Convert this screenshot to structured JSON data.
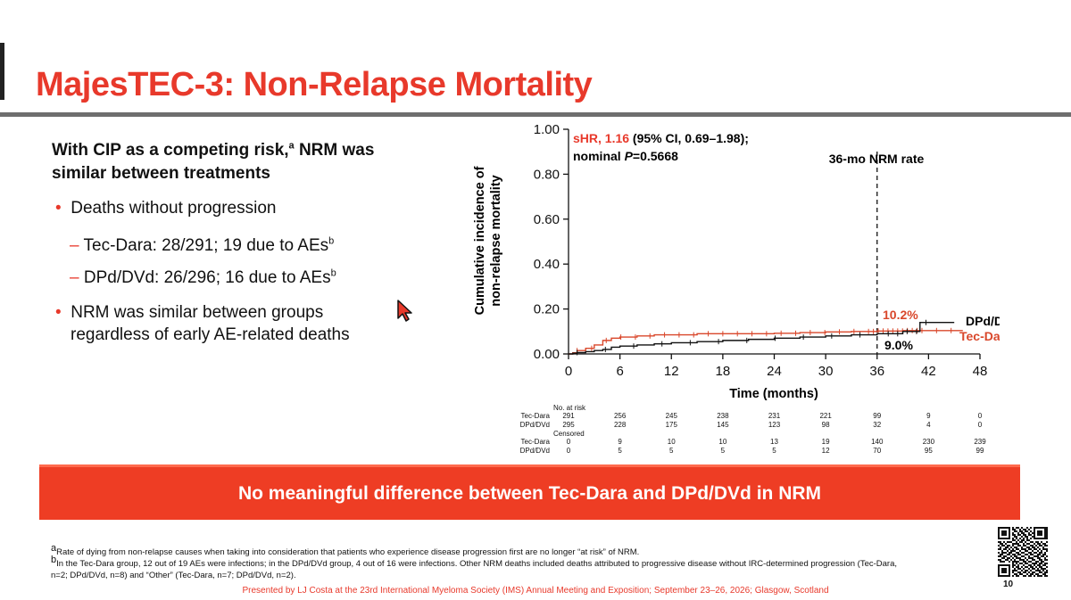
{
  "slide": {
    "title": "MajesTEC-3: Non-Relapse Mortality",
    "lead": "With CIP as a competing risk,",
    "lead_sup": "a",
    "lead_rest": " NRM was similar between treatments",
    "bullets": {
      "b1": "Deaths without progression",
      "b1a_label": "Tec-Dara: 28/291; 19 due to AEs",
      "b1a_sup": "b",
      "b1b_label": "DPd/DVd: 26/296; 16 due to AEs",
      "b1b_sup": "b",
      "b2_line1": "NRM was similar between groups",
      "b2_line2": "regardless of early AE-related deaths"
    },
    "banner": "No meaningful difference between Tec-Dara and DPd/DVd in NRM",
    "footnote_a_sup": "a",
    "footnote_a": "Rate of dying from non-relapse causes when taking into consideration that patients who experience disease progression first are no longer “at risk” of NRM.",
    "footnote_b_sup": "b",
    "footnote_b_line1": "In the Tec-Dara group, 12 out of 19 AEs were infections; in the DPd/DVd group, 4 out of 16 were infections. Other NRM deaths included deaths attributed to progressive disease without IRC-determined progression (Tec-Dara,",
    "footnote_b_line2": "n=2; DPd/DVd, n=8) and “Other” (Tec-Dara, n=7; DPd/DVd, n=2).",
    "presented_by": "Presented by LJ Costa at the 23rd International Myeloma Society (IMS) Annual Meeting and Exposition; September 23–26, 2026; Glasgow, Scotland",
    "page_number": "10"
  },
  "colors": {
    "accent": "#e8392b",
    "banner": "#ee3d24",
    "tec_dara": "#d9472b",
    "dpd_dvd": "#111111"
  },
  "icons": {
    "cursor": "cursor-arrow-icon",
    "qr": "qr-code-icon"
  },
  "chart_data": {
    "type": "line",
    "annotation_shr_red": "sHR, 1.16",
    "annotation_shr_rest": " (95% CI, 0.69–1.98);",
    "annotation_p_prefix": "nominal ",
    "annotation_p_italic": "P",
    "annotation_p_value": "=0.5668",
    "ref_line_label": "36-mo NRM rate",
    "ref_line_x": 36,
    "label_tec_rate": "10.2%",
    "label_dpd_rate": "9.0%",
    "xlabel": "Time (months)",
    "ylabel_line1": "Cumulative incidence of",
    "ylabel_line2": "non-relapse mortality",
    "xlim": [
      0,
      48
    ],
    "ylim": [
      0,
      1
    ],
    "x_ticks": [
      "0",
      "6",
      "12",
      "18",
      "24",
      "30",
      "36",
      "42",
      "48"
    ],
    "y_ticks": [
      "0.00",
      "0.20",
      "0.40",
      "0.60",
      "0.80",
      "1.00"
    ],
    "series": [
      {
        "name": "Tec-Dara",
        "points": [
          [
            0,
            0
          ],
          [
            0.5,
            0.005
          ],
          [
            1,
            0.015
          ],
          [
            2,
            0.025
          ],
          [
            3,
            0.04
          ],
          [
            4,
            0.06
          ],
          [
            5,
            0.07
          ],
          [
            6,
            0.075
          ],
          [
            8,
            0.08
          ],
          [
            10,
            0.085
          ],
          [
            12,
            0.085
          ],
          [
            15,
            0.09
          ],
          [
            18,
            0.09
          ],
          [
            21,
            0.09
          ],
          [
            24,
            0.092
          ],
          [
            27,
            0.095
          ],
          [
            30,
            0.098
          ],
          [
            33,
            0.1
          ],
          [
            36,
            0.102
          ],
          [
            39,
            0.104
          ],
          [
            42,
            0.104
          ],
          [
            46,
            0.104
          ]
        ]
      },
      {
        "name": "DPd/DVd",
        "points": [
          [
            0,
            0
          ],
          [
            0.5,
            0.003
          ],
          [
            1,
            0.006
          ],
          [
            2,
            0.01
          ],
          [
            3,
            0.015
          ],
          [
            4,
            0.02
          ],
          [
            5,
            0.03
          ],
          [
            6,
            0.035
          ],
          [
            8,
            0.04
          ],
          [
            10,
            0.045
          ],
          [
            12,
            0.05
          ],
          [
            15,
            0.055
          ],
          [
            18,
            0.06
          ],
          [
            21,
            0.065
          ],
          [
            24,
            0.07
          ],
          [
            27,
            0.075
          ],
          [
            30,
            0.08
          ],
          [
            33,
            0.085
          ],
          [
            36,
            0.09
          ],
          [
            39,
            0.1
          ],
          [
            41,
            0.14
          ],
          [
            45,
            0.14
          ]
        ]
      }
    ],
    "risk_table": {
      "header_at_risk": "No. at risk",
      "header_censored": "Censored",
      "at_risk": [
        {
          "label": "Tec-Dara",
          "values": [
            "291",
            "256",
            "245",
            "238",
            "231",
            "221",
            "99",
            "9",
            "0"
          ]
        },
        {
          "label": "DPd/DVd",
          "values": [
            "295",
            "228",
            "175",
            "145",
            "123",
            "98",
            "32",
            "4",
            "0"
          ]
        }
      ],
      "censored": [
        {
          "label": "Tec-Dara",
          "values": [
            "0",
            "9",
            "10",
            "10",
            "13",
            "19",
            "140",
            "230",
            "239"
          ]
        },
        {
          "label": "DPd/DVd",
          "values": [
            "0",
            "5",
            "5",
            "5",
            "5",
            "12",
            "70",
            "95",
            "99"
          ]
        }
      ]
    }
  }
}
